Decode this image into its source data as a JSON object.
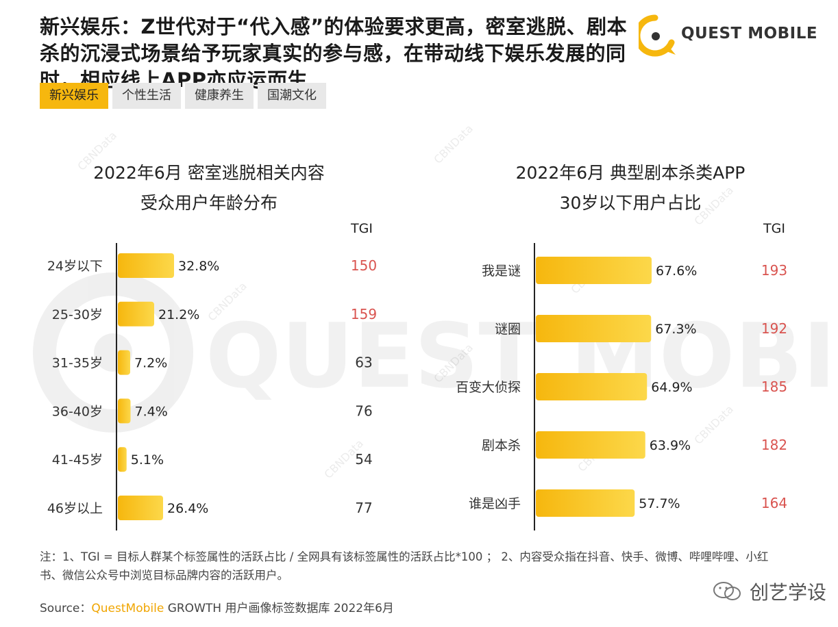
{
  "headline": "新兴娱乐：Z世代对于“代入感”的体验要求更高，密室逃脱、剧本杀的沉浸式场景给予玩家真实的参与感，在带动线下娱乐发展的同时，相应线上APP亦应运而生",
  "logo": {
    "text": "QUEST MOBILE",
    "watermark": "QUEST MOBILE",
    "small_watermark": "CBNData"
  },
  "tabs": [
    {
      "label": "新兴娱乐",
      "active": true
    },
    {
      "label": "个性生活",
      "active": false
    },
    {
      "label": "健康养生",
      "active": false
    },
    {
      "label": "国潮文化",
      "active": false
    }
  ],
  "colors": {
    "bar": "#f6b70e",
    "tgi_high": "#d9534f",
    "tgi_normal": "#333333",
    "accent": "#f6b70e"
  },
  "chart_data": [
    {
      "type": "bar",
      "orientation": "horizontal",
      "title_line1": "2022年6月 密室逃脱相关内容",
      "title_line2": "受众用户年龄分布",
      "tgi_header": "TGI",
      "categories": [
        "24岁以下",
        "25-30岁",
        "31-35岁",
        "36-40岁",
        "41-45岁",
        "46岁以上"
      ],
      "values": [
        32.8,
        21.2,
        7.2,
        7.4,
        5.1,
        26.4
      ],
      "value_labels": [
        "32.8%",
        "21.2%",
        "7.2%",
        "7.4%",
        "5.1%",
        "26.4%"
      ],
      "tgi": [
        "150",
        "159",
        "63",
        "76",
        "54",
        "77"
      ],
      "tgi_highlight": [
        true,
        true,
        false,
        false,
        false,
        false
      ]
    },
    {
      "type": "bar",
      "orientation": "horizontal",
      "title_line1": "2022年6月 典型剧本杀类APP",
      "title_line2": "30岁以下用户占比",
      "tgi_header": "TGI",
      "categories": [
        "我是谜",
        "谜圈",
        "百变大侦探",
        "剧本杀",
        "谁是凶手"
      ],
      "values": [
        67.6,
        67.3,
        64.9,
        63.9,
        57.7
      ],
      "value_labels": [
        "67.6%",
        "67.3%",
        "64.9%",
        "63.9%",
        "57.7%"
      ],
      "tgi": [
        "193",
        "192",
        "185",
        "182",
        "164"
      ],
      "tgi_highlight": [
        true,
        true,
        true,
        true,
        true
      ]
    }
  ],
  "footnote": "注：1、TGI = 目标人群某个标签属性的活跃占比 / 全网具有该标签属性的活跃占比*100 ； 2、内容受众指在抖音、快手、微博、哔哩哔哩、小红书、微信公众号中浏览目标品牌内容的活跃用户。",
  "source": {
    "prefix": "Source：",
    "brand": "QuestMobile",
    "rest": " GROWTH 用户画像标签数据库 2022年6月"
  },
  "wechat_account": "创艺学设"
}
